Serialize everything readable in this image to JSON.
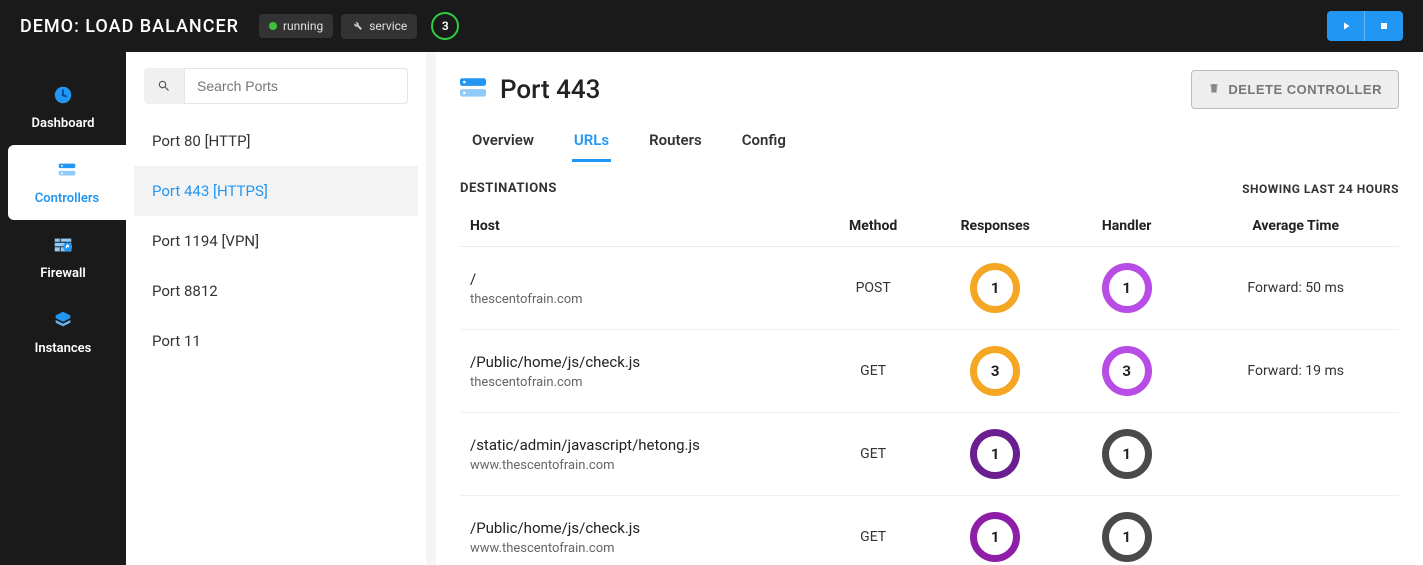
{
  "header": {
    "title": "DEMO: LOAD BALANCER",
    "status_label": "running",
    "type_label": "service",
    "count_badge": "3",
    "status_color": "#3ac13a",
    "count_ring_color": "#2ecc40"
  },
  "leftnav": {
    "items": [
      {
        "label": "Dashboard",
        "icon": "dashboard",
        "color": "#2196f3"
      },
      {
        "label": "Controllers",
        "icon": "controllers",
        "color": "#2196f3",
        "active": true
      },
      {
        "label": "Firewall",
        "icon": "firewall",
        "color": "#2196f3"
      },
      {
        "label": "Instances",
        "icon": "instances",
        "color": "#2196f3"
      }
    ]
  },
  "ports_panel": {
    "search_placeholder": "Search Ports",
    "items": [
      {
        "label": "Port 80 [HTTP]"
      },
      {
        "label": "Port 443 [HTTPS]",
        "selected": true
      },
      {
        "label": "Port 1194 [VPN]"
      },
      {
        "label": "Port 8812"
      },
      {
        "label": "Port 11"
      }
    ]
  },
  "content": {
    "page_title": "Port 443",
    "delete_label": "DELETE CONTROLLER",
    "tabs": [
      {
        "label": "Overview"
      },
      {
        "label": "URLs",
        "active": true
      },
      {
        "label": "Routers"
      },
      {
        "label": "Config"
      }
    ],
    "section_label": "DESTINATIONS",
    "section_sub": "SHOWING LAST 24 HOURS",
    "table": {
      "columns": [
        "Host",
        "Method",
        "Responses",
        "Handler",
        "Average Time"
      ],
      "rows": [
        {
          "path": "/",
          "domain": "thescentofrain.com",
          "method": "POST",
          "responses": {
            "value": "1",
            "color": "#f5a623"
          },
          "handler": {
            "value": "1",
            "color": "#b84de6"
          },
          "avg": "Forward: 50 ms"
        },
        {
          "path": "/Public/home/js/check.js",
          "domain": "thescentofrain.com",
          "method": "GET",
          "responses": {
            "value": "3",
            "color": "#f5a623"
          },
          "handler": {
            "value": "3",
            "color": "#b84de6"
          },
          "avg": "Forward: 19 ms"
        },
        {
          "path": "/static/admin/javascript/hetong.js",
          "domain": "www.thescentofrain.com",
          "method": "GET",
          "responses": {
            "value": "1",
            "color": "#6b1e8f"
          },
          "handler": {
            "value": "1",
            "color": "#4a4a4a"
          },
          "avg": ""
        },
        {
          "path": "/Public/home/js/check.js",
          "domain": "www.thescentofrain.com",
          "method": "GET",
          "responses": {
            "value": "1",
            "color": "#8e1ea8"
          },
          "handler": {
            "value": "1",
            "color": "#4a4a4a"
          },
          "avg": ""
        }
      ]
    }
  },
  "colors": {
    "primary": "#2196f3",
    "topbar_bg": "#1a1a1a",
    "panel_bg": "#ffffff"
  }
}
